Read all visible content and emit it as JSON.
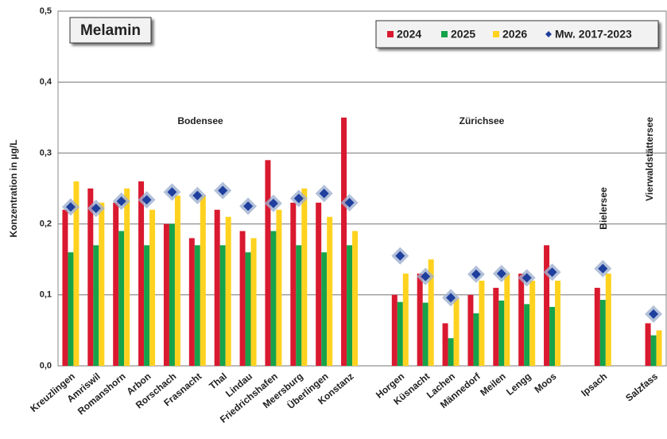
{
  "chart_data": {
    "type": "bar",
    "title": "Melamin",
    "y_label": "Konzentration in µg/L",
    "annotations": [
      "Bodensee",
      "Zürichsee",
      "Bielersee",
      "Vierwaldstättersee"
    ],
    "categories": [
      "Kreuzlingen",
      "Amriswil",
      "Romanshorn",
      "Arbon",
      "Rorschach",
      "Frasnacht",
      "Thal",
      "Lindau",
      "Friedrichshafen",
      "Meersburg",
      "Überlingen",
      "Konstanz",
      null,
      "Horgen",
      "Küsnacht",
      "Lachen",
      "Männedorf",
      "Meilen",
      "Lengg",
      "Moos",
      null,
      "Ipsach",
      null,
      "Salzfass"
    ],
    "series": [
      {
        "name": "2024",
        "color": "#d9192f",
        "values": [
          0.22,
          0.25,
          0.23,
          0.26,
          0.2,
          0.18,
          0.22,
          0.19,
          0.29,
          0.23,
          0.23,
          0.35,
          null,
          0.1,
          0.13,
          0.06,
          0.1,
          0.11,
          0.13,
          0.17,
          null,
          0.11,
          null,
          0.06
        ]
      },
      {
        "name": "2025",
        "color": "#16a34a",
        "values": [
          0.16,
          0.17,
          0.19,
          0.17,
          0.2,
          0.17,
          0.17,
          0.16,
          0.19,
          0.17,
          0.16,
          0.17,
          null,
          0.09,
          0.089,
          0.039,
          0.074,
          0.092,
          0.087,
          0.083,
          null,
          0.093,
          null,
          0.043
        ]
      },
      {
        "name": "2026",
        "color": "#ffd21f",
        "values": [
          0.26,
          0.23,
          0.25,
          0.22,
          0.24,
          0.24,
          0.21,
          0.18,
          0.22,
          0.25,
          0.21,
          0.19,
          null,
          0.13,
          0.15,
          0.095,
          0.12,
          0.13,
          0.12,
          0.12,
          null,
          0.13,
          null,
          0.05
        ]
      },
      {
        "name": "Mw. 2017-2023",
        "color": "#1f3f9e",
        "marker": "diamond",
        "values": [
          0.224,
          0.222,
          0.232,
          0.234,
          0.245,
          0.24,
          0.247,
          0.225,
          0.229,
          0.236,
          0.243,
          0.23,
          null,
          0.155,
          0.126,
          0.096,
          0.129,
          0.13,
          0.124,
          0.132,
          null,
          0.137,
          null,
          0.073
        ]
      }
    ],
    "ylim": [
      0,
      0.5
    ],
    "yticks": [
      {
        "value": 0,
        "label": "0,0"
      },
      {
        "value": 0.1,
        "label": "0,1"
      },
      {
        "value": 0.2,
        "label": "0,2"
      },
      {
        "value": 0.3,
        "label": "0,3"
      },
      {
        "value": 0.4,
        "label": "0,4"
      },
      {
        "value": 0.5,
        "label": "0,5"
      }
    ],
    "grid": true,
    "legend": "top-right"
  }
}
